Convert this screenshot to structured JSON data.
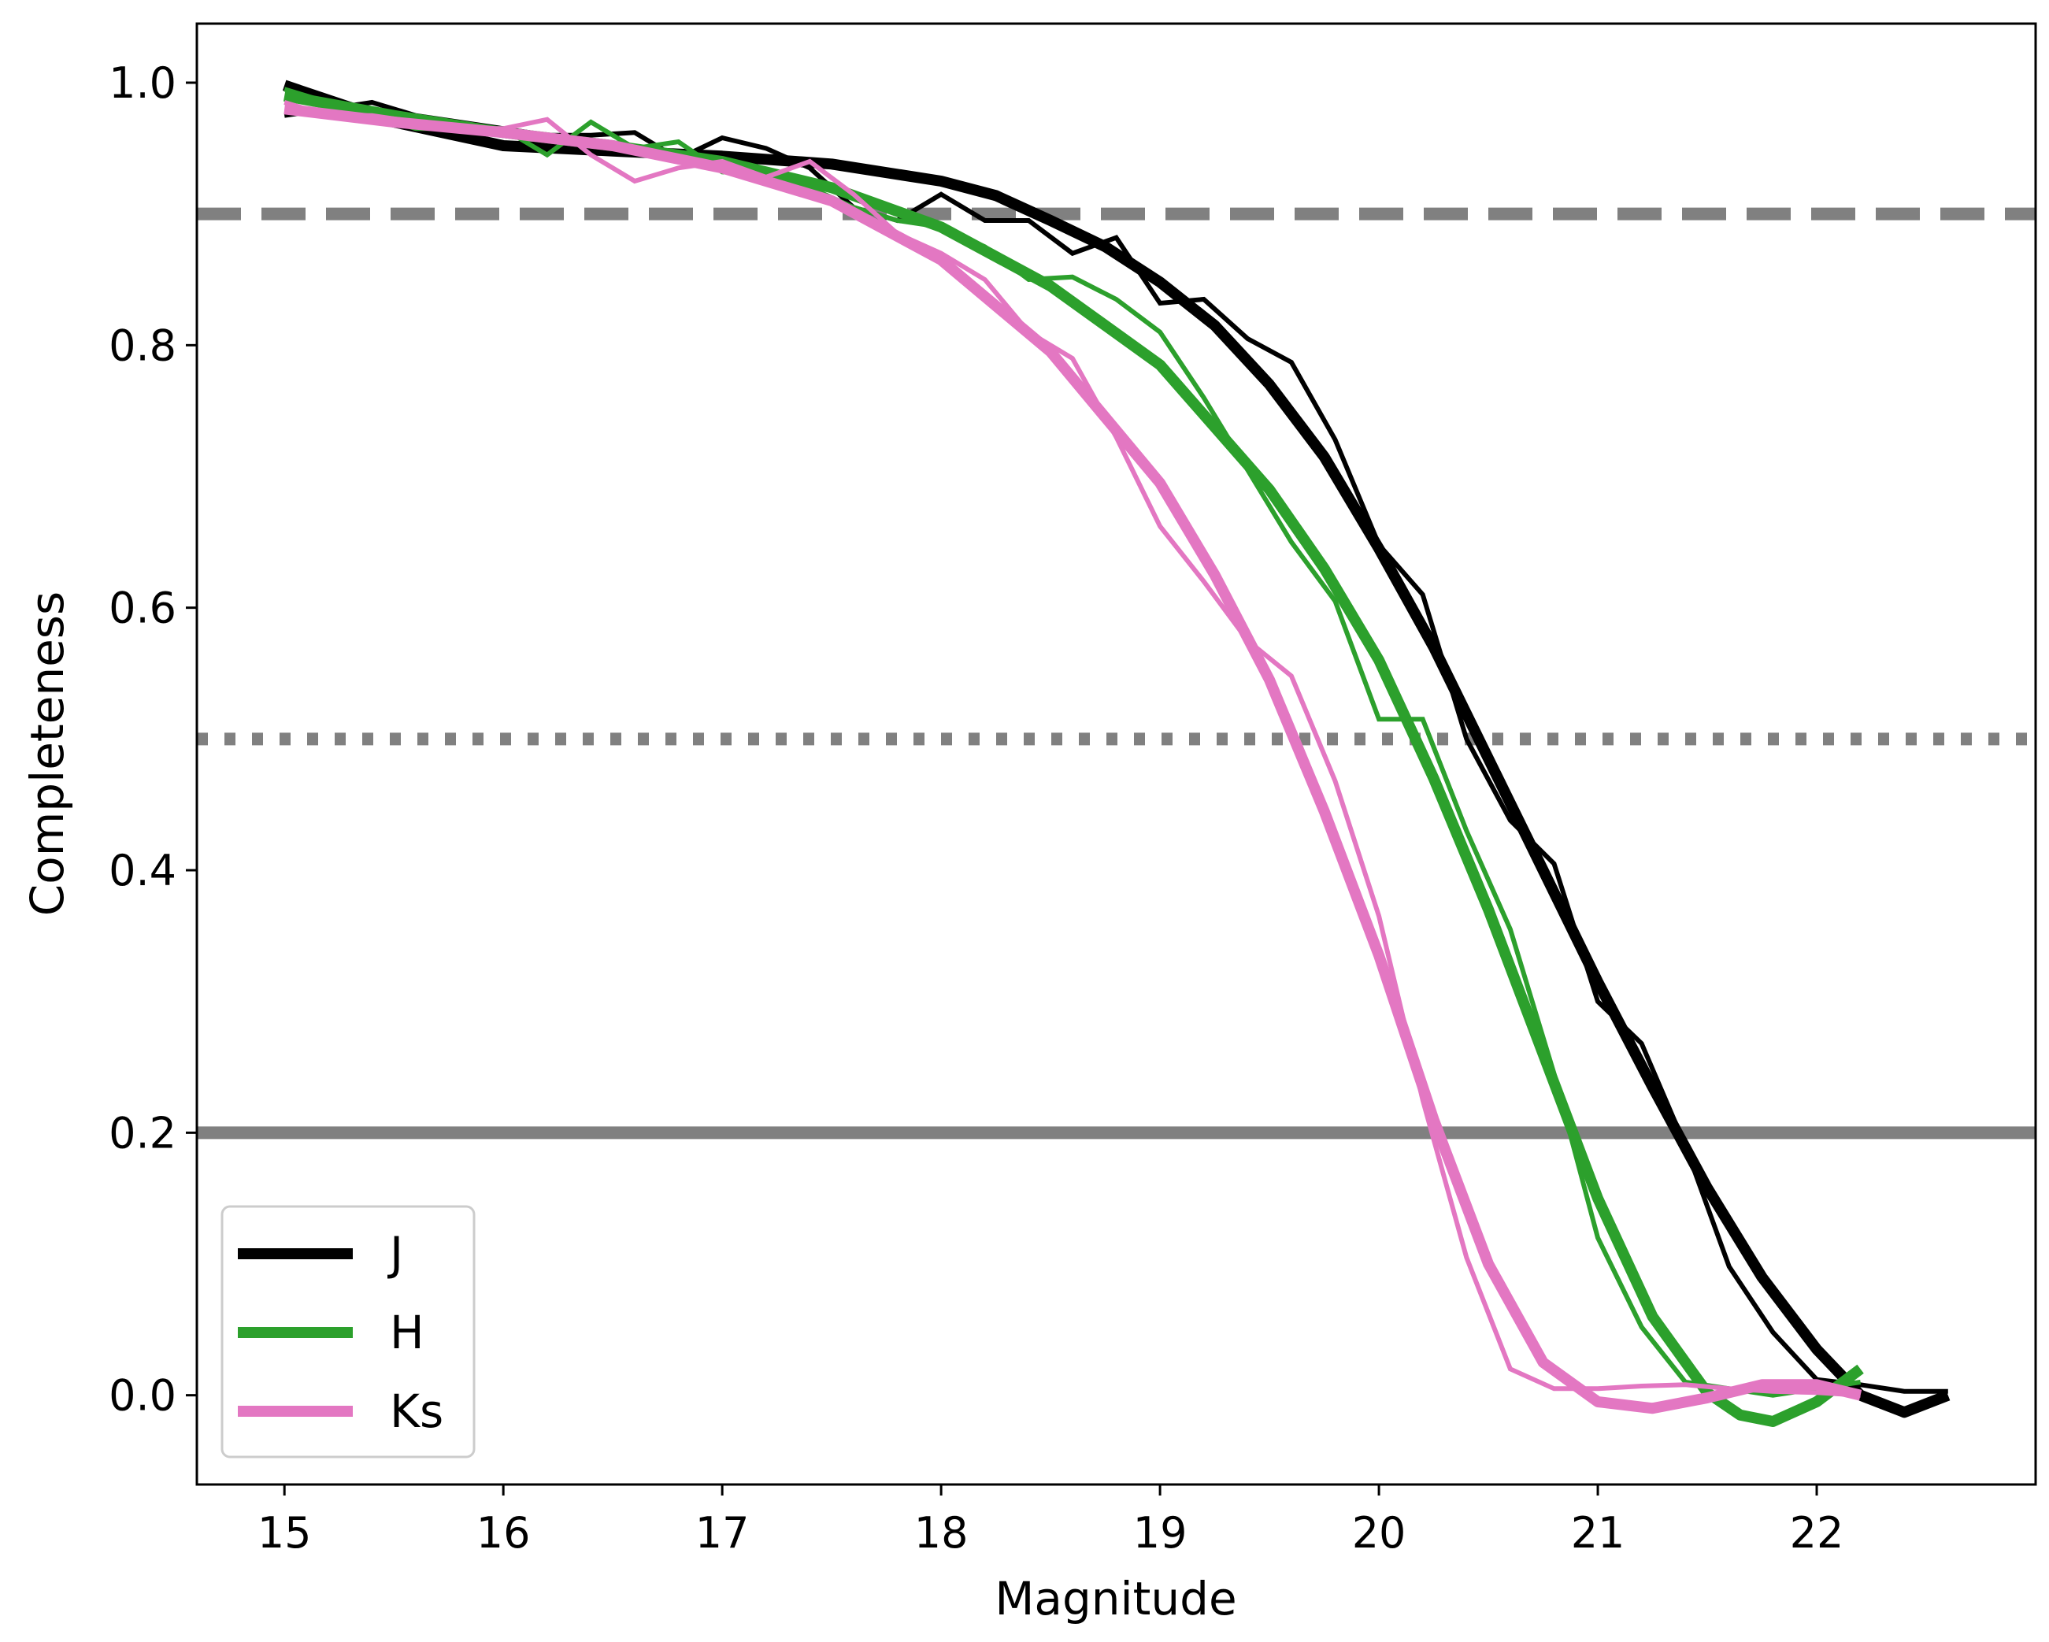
{
  "chart_data": {
    "type": "line",
    "title": "",
    "xlabel": "Magnitude",
    "ylabel": "Completeness",
    "xlim": [
      14.6,
      23.0
    ],
    "ylim": [
      -0.068,
      1.045
    ],
    "xticks": [
      15,
      16,
      17,
      18,
      19,
      20,
      21,
      22
    ],
    "xtick_labels": [
      "15",
      "16",
      "17",
      "18",
      "19",
      "20",
      "21",
      "22"
    ],
    "yticks": [
      0.0,
      0.2,
      0.4,
      0.6,
      0.8,
      1.0
    ],
    "ytick_labels": [
      "0.0",
      "0.2",
      "0.4",
      "0.6",
      "0.8",
      "1.0"
    ],
    "grid": false,
    "legend_position": "lower-left",
    "reference_lines": [
      {
        "y": 0.9,
        "style": "dashed",
        "color": "#808080"
      },
      {
        "y": 0.5,
        "style": "dotted",
        "color": "#808080"
      },
      {
        "y": 0.2,
        "style": "solid",
        "color": "#808080"
      }
    ],
    "series": [
      {
        "name": "J",
        "color": "#000000",
        "data": {
          "x": [
            15.0,
            15.2,
            15.4,
            15.6,
            15.8,
            16.0,
            16.2,
            16.4,
            16.6,
            16.8,
            17.0,
            17.2,
            17.4,
            17.6,
            17.8,
            18.0,
            18.2,
            18.4,
            18.6,
            18.8,
            19.0,
            19.2,
            19.4,
            19.6,
            19.8,
            20.0,
            20.2,
            20.4,
            20.6,
            20.8,
            21.0,
            21.2,
            21.4,
            21.6,
            21.8,
            22.0,
            22.2,
            22.4,
            22.6
          ],
          "y": [
            0.975,
            0.98,
            0.985,
            0.975,
            0.97,
            0.965,
            0.96,
            0.96,
            0.962,
            0.942,
            0.958,
            0.95,
            0.935,
            0.905,
            0.895,
            0.915,
            0.895,
            0.895,
            0.87,
            0.882,
            0.832,
            0.835,
            0.805,
            0.787,
            0.728,
            0.648,
            0.61,
            0.5,
            0.438,
            0.405,
            0.3,
            0.268,
            0.19,
            0.098,
            0.048,
            0.012,
            0.008,
            0.003,
            0.003
          ]
        },
        "fit": {
          "x": [
            15.0,
            15.5,
            16.0,
            16.5,
            17.0,
            17.5,
            18.0,
            18.25,
            18.5,
            18.75,
            19.0,
            19.25,
            19.5,
            19.75,
            20.0,
            20.25,
            20.5,
            20.75,
            21.0,
            21.25,
            21.5,
            21.75,
            22.0,
            22.2,
            22.4,
            22.6
          ],
          "y": [
            0.998,
            0.97,
            0.952,
            0.948,
            0.944,
            0.938,
            0.925,
            0.914,
            0.895,
            0.875,
            0.848,
            0.815,
            0.77,
            0.715,
            0.645,
            0.57,
            0.485,
            0.4,
            0.315,
            0.235,
            0.158,
            0.09,
            0.035,
            0.0,
            -0.013,
            0.0
          ]
        }
      },
      {
        "name": "H",
        "color": "#2ca02c",
        "data": {
          "x": [
            15.0,
            15.2,
            15.4,
            15.6,
            15.8,
            16.0,
            16.2,
            16.4,
            16.6,
            16.8,
            17.0,
            17.2,
            17.4,
            17.6,
            17.8,
            18.0,
            18.2,
            18.4,
            18.6,
            18.8,
            19.0,
            19.2,
            19.4,
            19.6,
            19.8,
            20.0,
            20.2,
            20.4,
            20.6,
            20.8,
            21.0,
            21.2,
            21.4,
            21.6,
            21.8,
            22.0,
            22.2
          ],
          "y": [
            0.995,
            0.985,
            0.975,
            0.965,
            0.965,
            0.965,
            0.945,
            0.97,
            0.95,
            0.955,
            0.932,
            0.93,
            0.92,
            0.905,
            0.895,
            0.89,
            0.875,
            0.85,
            0.852,
            0.835,
            0.81,
            0.76,
            0.705,
            0.65,
            0.605,
            0.515,
            0.515,
            0.43,
            0.355,
            0.245,
            0.12,
            0.052,
            0.01,
            0.005,
            0.0,
            0.005,
            0.01
          ]
        },
        "fit": {
          "x": [
            15.0,
            15.5,
            16.0,
            16.5,
            17.0,
            17.5,
            18.0,
            18.5,
            19.0,
            19.5,
            19.75,
            20.0,
            20.25,
            20.5,
            20.75,
            21.0,
            21.25,
            21.5,
            21.65,
            21.8,
            22.0,
            22.2
          ],
          "y": [
            0.99,
            0.975,
            0.962,
            0.952,
            0.94,
            0.92,
            0.89,
            0.845,
            0.785,
            0.69,
            0.63,
            0.56,
            0.47,
            0.37,
            0.26,
            0.15,
            0.06,
            0.002,
            -0.015,
            -0.02,
            -0.005,
            0.02
          ]
        }
      },
      {
        "name": "Ks",
        "color": "#e377c2",
        "data": {
          "x": [
            15.0,
            15.2,
            15.4,
            15.6,
            15.8,
            16.0,
            16.2,
            16.4,
            16.6,
            16.8,
            17.0,
            17.2,
            17.4,
            17.6,
            17.8,
            18.0,
            18.2,
            18.4,
            18.6,
            18.8,
            19.0,
            19.2,
            19.4,
            19.6,
            19.8,
            20.0,
            20.2,
            20.4,
            20.6,
            20.8,
            21.0,
            21.2,
            21.4,
            21.6,
            21.8,
            22.0,
            22.2
          ],
          "y": [
            0.985,
            0.975,
            0.975,
            0.97,
            0.965,
            0.965,
            0.972,
            0.945,
            0.925,
            0.935,
            0.94,
            0.928,
            0.94,
            0.915,
            0.885,
            0.87,
            0.85,
            0.81,
            0.79,
            0.73,
            0.662,
            0.62,
            0.575,
            0.548,
            0.468,
            0.365,
            0.225,
            0.105,
            0.02,
            0.005,
            0.005,
            0.007,
            0.008,
            0.005,
            0.003,
            0.002,
            0.0
          ]
        },
        "fit": {
          "x": [
            15.0,
            15.5,
            16.0,
            16.5,
            17.0,
            17.5,
            18.0,
            18.5,
            19.0,
            19.25,
            19.5,
            19.75,
            20.0,
            20.25,
            20.5,
            20.75,
            21.0,
            21.25,
            21.5,
            21.75,
            22.0,
            22.2
          ],
          "y": [
            0.98,
            0.97,
            0.962,
            0.952,
            0.935,
            0.91,
            0.865,
            0.795,
            0.695,
            0.625,
            0.545,
            0.445,
            0.335,
            0.21,
            0.1,
            0.025,
            -0.005,
            -0.01,
            -0.002,
            0.008,
            0.008,
            0.0
          ]
        }
      }
    ]
  }
}
